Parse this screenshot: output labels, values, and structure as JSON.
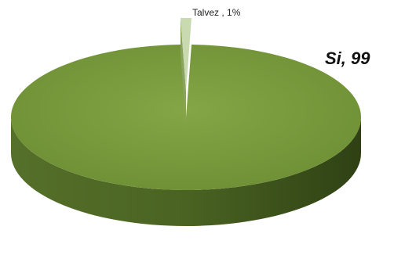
{
  "chart_data": {
    "type": "pie",
    "style": "3d",
    "slices": [
      {
        "name": "Si",
        "value": 99,
        "label": "Si, 99",
        "color": "#7a9a3d"
      },
      {
        "name": "Talvez",
        "value": 1,
        "label": "Talvez , 1%",
        "color": "#c9dab0"
      }
    ],
    "title": "",
    "legend": "none"
  }
}
